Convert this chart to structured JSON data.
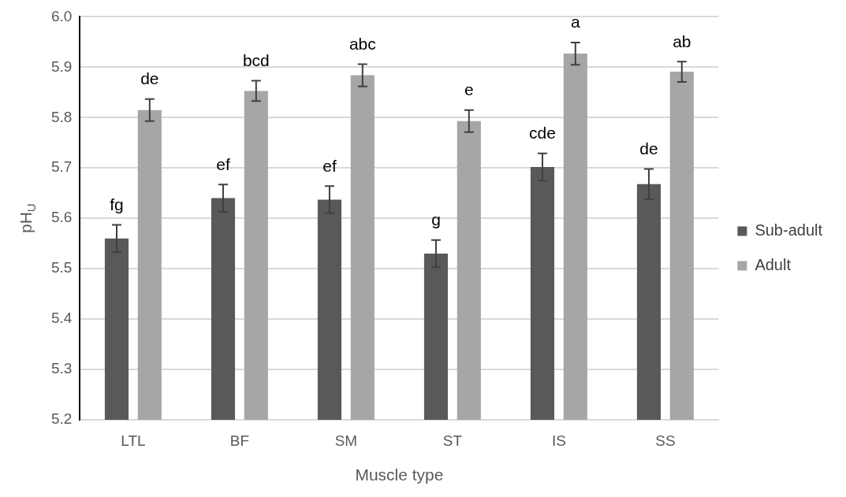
{
  "chart_data": {
    "type": "bar",
    "xlabel": "Muscle type",
    "ylabel": "pH$_{U}$",
    "categories": [
      "LTL",
      "BF",
      "SM",
      "ST",
      "IS",
      "SS"
    ],
    "series": [
      {
        "name": "Sub-adult",
        "color": "#595959",
        "values": [
          5.56,
          5.64,
          5.637,
          5.53,
          5.702,
          5.668
        ],
        "errors": [
          0.027,
          0.027,
          0.027,
          0.027,
          0.027,
          0.03
        ],
        "value_labels": [
          "fg",
          "ef",
          "ef",
          "g",
          "cde",
          "de"
        ]
      },
      {
        "name": "Adult",
        "color": "#a6a6a6",
        "values": [
          5.815,
          5.853,
          5.884,
          5.793,
          5.927,
          5.891
        ],
        "errors": [
          0.022,
          0.02,
          0.022,
          0.022,
          0.022,
          0.02
        ],
        "value_labels": [
          "de",
          "bcd",
          "abc",
          "e",
          "a",
          "ab"
        ]
      }
    ],
    "ylim": [
      5.2,
      6.0
    ],
    "yticks": [
      {
        "value": 5.2,
        "label": "5.2"
      },
      {
        "value": 5.3,
        "label": "5.3"
      },
      {
        "value": 5.4,
        "label": "5.4"
      },
      {
        "value": 5.5,
        "label": "5.5"
      },
      {
        "value": 5.6,
        "label": "5.6"
      },
      {
        "value": 5.7,
        "label": "5.7"
      },
      {
        "value": 5.8,
        "label": "5.8"
      },
      {
        "value": 5.9,
        "label": "5.9"
      },
      {
        "value": 6.0,
        "label": "6.0"
      }
    ],
    "grid": "y",
    "legend": "right"
  }
}
